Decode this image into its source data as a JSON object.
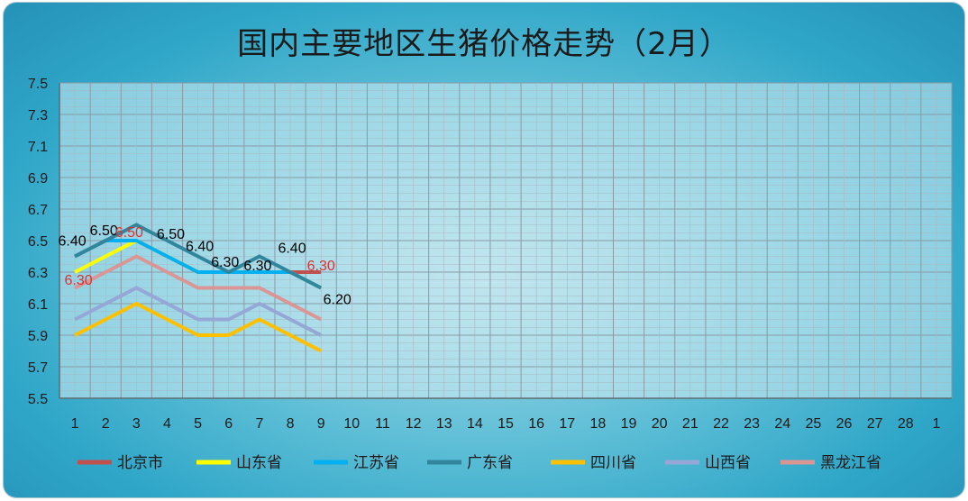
{
  "chart_data": {
    "type": "line",
    "title": "国内主要地区生猪价格走势（2月）",
    "x_tick_labels": [
      "1",
      "2",
      "3",
      "4",
      "5",
      "6",
      "7",
      "8",
      "9",
      "10",
      "11",
      "12",
      "13",
      "14",
      "15",
      "16",
      "17",
      "18",
      "19",
      "20",
      "21",
      "22",
      "23",
      "24",
      "25",
      "26",
      "27",
      "28",
      "1"
    ],
    "ylim": [
      5.5,
      7.5
    ],
    "y_ticks": [
      "5.5",
      "5.7",
      "5.9",
      "6.1",
      "6.3",
      "6.5",
      "6.7",
      "6.9",
      "7.1",
      "7.3",
      "7.5"
    ],
    "y_tick_values": [
      5.5,
      5.7,
      5.9,
      6.1,
      6.3,
      6.5,
      6.7,
      6.9,
      7.1,
      7.3,
      7.5
    ],
    "grid": true,
    "legend_position": "bottom",
    "series": [
      {
        "name": "北京市",
        "color": "#c0504d",
        "x": [
          1,
          2,
          3,
          4,
          5,
          6,
          7,
          8,
          9
        ],
        "values": [
          6.4,
          6.5,
          6.5,
          6.4,
          6.3,
          6.3,
          6.3,
          6.3,
          6.3
        ]
      },
      {
        "name": "山东省",
        "color": "#ffff00",
        "x": [
          1,
          2,
          3,
          4,
          5,
          6,
          7,
          8,
          9
        ],
        "values": [
          6.3,
          6.4,
          6.5,
          6.4,
          6.3,
          6.3,
          6.3,
          6.3,
          6.2
        ]
      },
      {
        "name": "江苏省",
        "color": "#00b0f0",
        "x": [
          1,
          2,
          3,
          4,
          5,
          6,
          7,
          8,
          9
        ],
        "values": [
          6.4,
          6.5,
          6.5,
          6.4,
          6.3,
          6.3,
          6.3,
          6.3,
          6.2
        ]
      },
      {
        "name": "广东省",
        "color": "#31859c",
        "x": [
          1,
          2,
          3,
          4,
          5,
          6,
          7,
          8,
          9
        ],
        "values": [
          6.4,
          6.5,
          6.6,
          6.5,
          6.4,
          6.3,
          6.4,
          6.3,
          6.2
        ]
      },
      {
        "name": "四川省",
        "color": "#ffc000",
        "x": [
          1,
          2,
          3,
          4,
          5,
          6,
          7,
          8,
          9
        ],
        "values": [
          5.9,
          6.0,
          6.1,
          6.0,
          5.9,
          5.9,
          6.0,
          5.9,
          5.8
        ]
      },
      {
        "name": "山西省",
        "color": "#95a7d6",
        "x": [
          1,
          2,
          3,
          4,
          5,
          6,
          7,
          8,
          9
        ],
        "values": [
          6.0,
          6.1,
          6.2,
          6.1,
          6.0,
          6.0,
          6.1,
          6.0,
          5.9
        ]
      },
      {
        "name": "黑龙江省",
        "color": "#da9694",
        "x": [
          1,
          2,
          3,
          4,
          5,
          6,
          7,
          8,
          9
        ],
        "values": [
          6.2,
          6.3,
          6.4,
          6.3,
          6.2,
          6.2,
          6.2,
          6.1,
          6.0
        ]
      }
    ],
    "data_labels": [
      {
        "x": 1,
        "y": 6.4,
        "text": "6.40",
        "color": "#000000"
      },
      {
        "x": 2,
        "y": 6.5,
        "text": "6.50",
        "color": "#000000"
      },
      {
        "x": 3,
        "y": 6.5,
        "text": "6.50",
        "color": "#e03030"
      },
      {
        "x": 4,
        "y": 6.5,
        "text": "6.50",
        "color": "#000000"
      },
      {
        "x": 5,
        "y": 6.4,
        "text": "6.40",
        "color": "#000000"
      },
      {
        "x": 6,
        "y": 6.3,
        "text": "6.30",
        "color": "#000000"
      },
      {
        "x": 7,
        "y": 6.3,
        "text": "6.30",
        "color": "#000000"
      },
      {
        "x": 8,
        "y": 6.4,
        "text": "6.40",
        "color": "#000000"
      },
      {
        "x": 9,
        "y": 6.3,
        "text": "6.30",
        "color": "#e03030"
      },
      {
        "x": 9,
        "y": 6.2,
        "text": "6.20",
        "color": "#000000"
      },
      {
        "x": 1,
        "y": 6.3,
        "text": "6.30",
        "color": "#e03030"
      }
    ]
  }
}
